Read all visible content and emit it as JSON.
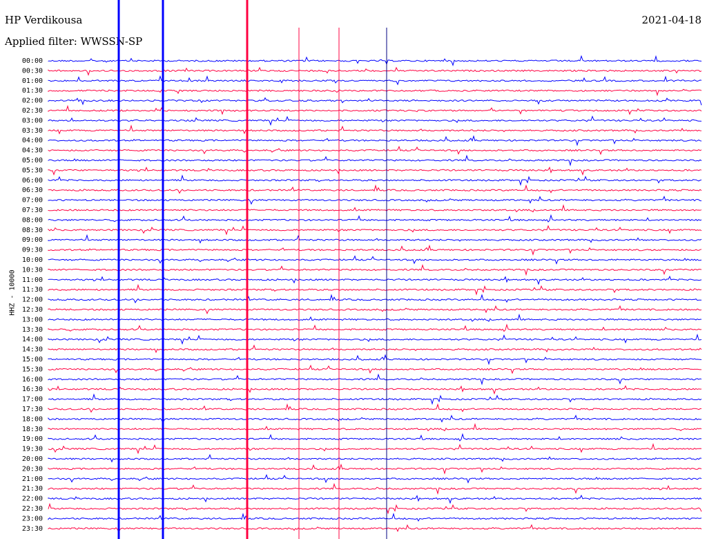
{
  "header": {
    "station": "HP Verdikousa",
    "filter": "Applied filter: WWSSN-SP",
    "date": "2021-04-18"
  },
  "chart_data": {
    "type": "line",
    "title": "HP Verdikousa",
    "subtitle": "Applied filter: WWSSN-SP",
    "ylabel": "HHZ - 10000",
    "row_labels": [
      "00:00",
      "00:30",
      "01:00",
      "01:30",
      "02:00",
      "02:30",
      "03:00",
      "03:30",
      "04:00",
      "04:30",
      "05:00",
      "05:30",
      "06:00",
      "06:30",
      "07:00",
      "07:30",
      "08:00",
      "08:30",
      "09:00",
      "09:30",
      "10:00",
      "10:30",
      "11:00",
      "11:30",
      "12:00",
      "12:30",
      "13:00",
      "13:30",
      "14:00",
      "14:30",
      "15:00",
      "15:30",
      "16:00",
      "16:30",
      "17:00",
      "17:30",
      "18:00",
      "18:30",
      "19:00",
      "19:30",
      "20:00",
      "20:30",
      "21:00",
      "21:30",
      "22:00",
      "22:30",
      "23:00",
      "23:30"
    ],
    "trace_colors": [
      "#0000ff",
      "#ff0040",
      "#000080"
    ],
    "event_columns_fraction": [
      0.11,
      0.18,
      0.32,
      0.38,
      0.46,
      0.54,
      0.62,
      0.7
    ],
    "grid": false
  }
}
